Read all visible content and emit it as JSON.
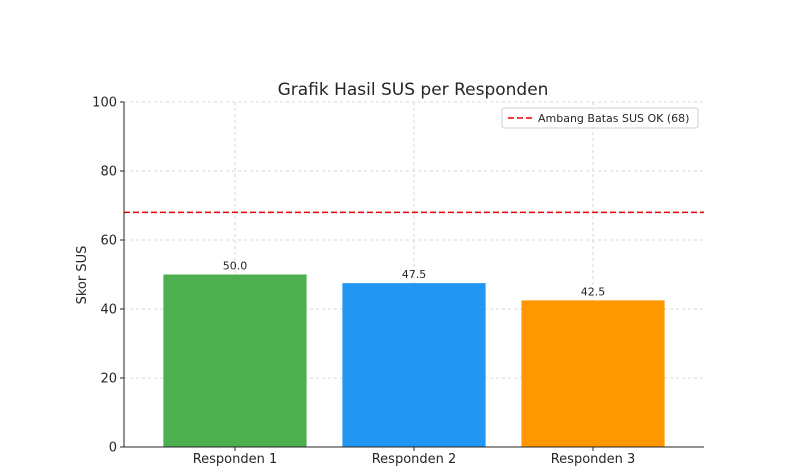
{
  "chart_data": {
    "type": "bar",
    "title": "Grafik Hasil SUS per Responden",
    "xlabel": "",
    "ylabel": "Skor SUS",
    "categories": [
      "Responden 1",
      "Responden 2",
      "Responden 3"
    ],
    "values": [
      50.0,
      47.5,
      42.5
    ],
    "value_labels": [
      "50.0",
      "47.5",
      "42.5"
    ],
    "bar_colors": [
      "#4caf50",
      "#2196f3",
      "#ff9800"
    ],
    "ylim": [
      0,
      100
    ],
    "yticks": [
      0,
      20,
      40,
      60,
      80,
      100
    ],
    "grid": true,
    "reference_line": {
      "value": 68,
      "label": "Ambang Batas SUS OK (68)",
      "color": "#e00000",
      "style": "dashed"
    },
    "legend": {
      "position": "top-right",
      "entries": [
        "Ambang Batas SUS OK (68)"
      ]
    }
  }
}
